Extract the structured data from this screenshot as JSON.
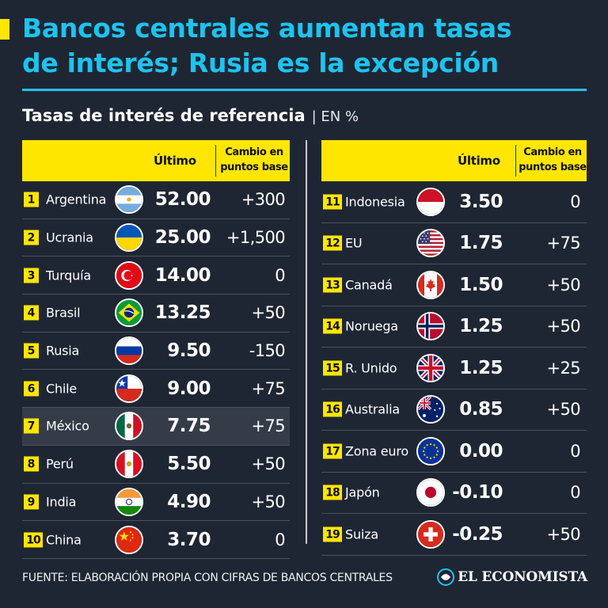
{
  "title_lines": [
    "Bancos centrales aumentan tasas",
    "de interés; Rusia es la excepción"
  ],
  "subtitle": {
    "main": "Tasas de interés de referencia",
    "unit": "| EN %"
  },
  "columns": {
    "ultimo": "Último",
    "cambio_line1": "Cambio en",
    "cambio_line2": "puntos base"
  },
  "footer": "FUENTE: ELABORACIÓN PROPIA CON CIFRAS DE BANCOS CENTRALES",
  "brand": "EL ECONOMISTA",
  "colors": {
    "background": "#1f2633",
    "title": "#1ec3ef",
    "header": "#ffe600"
  },
  "chart_data": {
    "type": "table",
    "columns": [
      "Último",
      "Cambio en puntos base"
    ],
    "left": [
      {
        "rank": "1",
        "country": "Argentina",
        "flag": "argentina-flag",
        "ultimo": "52.00",
        "cambio": "+300"
      },
      {
        "rank": "2",
        "country": "Ucrania",
        "flag": "ukraine-flag",
        "ultimo": "25.00",
        "cambio": "+1,500"
      },
      {
        "rank": "3",
        "country": "Turquía",
        "flag": "turkey-flag",
        "ultimo": "14.00",
        "cambio": "0"
      },
      {
        "rank": "4",
        "country": "Brasil",
        "flag": "brazil-flag",
        "ultimo": "13.25",
        "cambio": "+50"
      },
      {
        "rank": "5",
        "country": "Rusia",
        "flag": "russia-flag",
        "ultimo": "9.50",
        "cambio": "-150"
      },
      {
        "rank": "6",
        "country": "Chile",
        "flag": "chile-flag",
        "ultimo": "9.00",
        "cambio": "+75"
      },
      {
        "rank": "7",
        "country": "México",
        "flag": "mexico-flag",
        "ultimo": "7.75",
        "cambio": "+75",
        "highlight": true
      },
      {
        "rank": "8",
        "country": "Perú",
        "flag": "peru-flag",
        "ultimo": "5.50",
        "cambio": "+50"
      },
      {
        "rank": "9",
        "country": "India",
        "flag": "india-flag",
        "ultimo": "4.90",
        "cambio": "+50"
      },
      {
        "rank": "10",
        "country": "China",
        "flag": "china-flag",
        "ultimo": "3.70",
        "cambio": "0"
      }
    ],
    "right": [
      {
        "rank": "11",
        "country": "Indonesia",
        "flag": "indonesia-flag",
        "ultimo": "3.50",
        "cambio": "0"
      },
      {
        "rank": "12",
        "country": "EU",
        "flag": "usa-flag",
        "ultimo": "1.75",
        "cambio": "+75"
      },
      {
        "rank": "13",
        "country": "Canadá",
        "flag": "canada-flag",
        "ultimo": "1.50",
        "cambio": "+50"
      },
      {
        "rank": "14",
        "country": "Noruega",
        "flag": "norway-flag",
        "ultimo": "1.25",
        "cambio": "+50"
      },
      {
        "rank": "15",
        "country": "R. Unido",
        "flag": "uk-flag",
        "ultimo": "1.25",
        "cambio": "+25"
      },
      {
        "rank": "16",
        "country": "Australia",
        "flag": "australia-flag",
        "ultimo": "0.85",
        "cambio": "+50"
      },
      {
        "rank": "17",
        "country": "Zona euro",
        "flag": "eu-flag",
        "ultimo": "0.00",
        "cambio": "0"
      },
      {
        "rank": "18",
        "country": "Japón",
        "flag": "japan-flag",
        "ultimo": "-0.10",
        "cambio": "0"
      },
      {
        "rank": "19",
        "country": "Suiza",
        "flag": "switzerland-flag",
        "ultimo": "-0.25",
        "cambio": "+50"
      }
    ]
  }
}
